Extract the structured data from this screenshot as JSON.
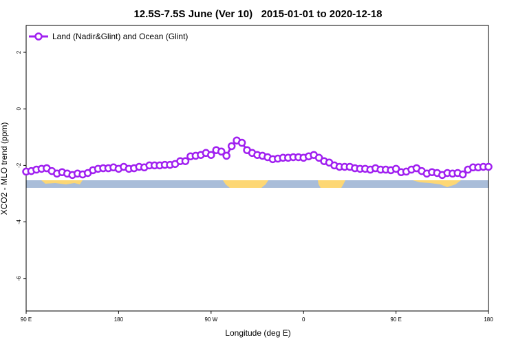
{
  "chart_data": {
    "type": "line",
    "title": "12.5S-7.5S June (Ver 10)   2015-01-01 to 2020-12-18",
    "xlabel": "Longitude (deg E)",
    "ylabel": "XCO2 - MLO trend (ppm)",
    "x": [
      90,
      95,
      100,
      105,
      110,
      115,
      120,
      125,
      130,
      135,
      140,
      145,
      150,
      155,
      160,
      165,
      170,
      175,
      180,
      185,
      190,
      195,
      200,
      205,
      210,
      215,
      220,
      225,
      230,
      235,
      240,
      245,
      250,
      255,
      260,
      265,
      270,
      275,
      280,
      285,
      290,
      295,
      300,
      305,
      310,
      315,
      320,
      325,
      330,
      335,
      340,
      345,
      350,
      355,
      360,
      365,
      370,
      375,
      380,
      385,
      390,
      395,
      400,
      405,
      410,
      415,
      420,
      425,
      430,
      435,
      440,
      445,
      450,
      455,
      460,
      465,
      470,
      475,
      480,
      485,
      490,
      495,
      500,
      505,
      510,
      515,
      520,
      525,
      530,
      535,
      540
    ],
    "series": [
      {
        "name": "Land (Nadir&Glint) and Ocean (Glint)",
        "color": "#a020f0",
        "values": [
          -2.22,
          -2.2,
          -2.15,
          -2.12,
          -2.1,
          -2.2,
          -2.29,
          -2.24,
          -2.29,
          -2.34,
          -2.29,
          -2.32,
          -2.27,
          -2.17,
          -2.12,
          -2.1,
          -2.1,
          -2.07,
          -2.12,
          -2.05,
          -2.12,
          -2.1,
          -2.05,
          -2.07,
          -2.0,
          -2.0,
          -2.0,
          -1.98,
          -1.98,
          -1.95,
          -1.85,
          -1.85,
          -1.68,
          -1.66,
          -1.63,
          -1.56,
          -1.63,
          -1.46,
          -1.51,
          -1.66,
          -1.32,
          -1.12,
          -1.2,
          -1.46,
          -1.56,
          -1.63,
          -1.66,
          -1.71,
          -1.78,
          -1.76,
          -1.73,
          -1.73,
          -1.71,
          -1.71,
          -1.73,
          -1.68,
          -1.63,
          -1.73,
          -1.85,
          -1.9,
          -2.0,
          -2.05,
          -2.05,
          -2.05,
          -2.1,
          -2.12,
          -2.12,
          -2.15,
          -2.1,
          -2.15,
          -2.15,
          -2.17,
          -2.12,
          -2.24,
          -2.22,
          -2.15,
          -2.1,
          -2.2,
          -2.29,
          -2.24,
          -2.27,
          -2.34,
          -2.27,
          -2.29,
          -2.27,
          -2.32,
          -2.15,
          -2.07,
          -2.07,
          -2.05,
          -2.05
        ]
      }
    ],
    "xlim": [
      90,
      540
    ],
    "xticks": [
      {
        "value": 90,
        "label": "90 E"
      },
      180,
      {
        "value": 270,
        "label": "90 W"
      },
      {
        "value": 360,
        "label": "0"
      },
      {
        "value": 450,
        "label": "90 E"
      },
      {
        "value": 540,
        "label": "180"
      }
    ],
    "ylim": [
      -7.15,
      2.95
    ],
    "yticks": [
      -6,
      -4,
      -2,
      0,
      2
    ],
    "legend": "upper left"
  }
}
